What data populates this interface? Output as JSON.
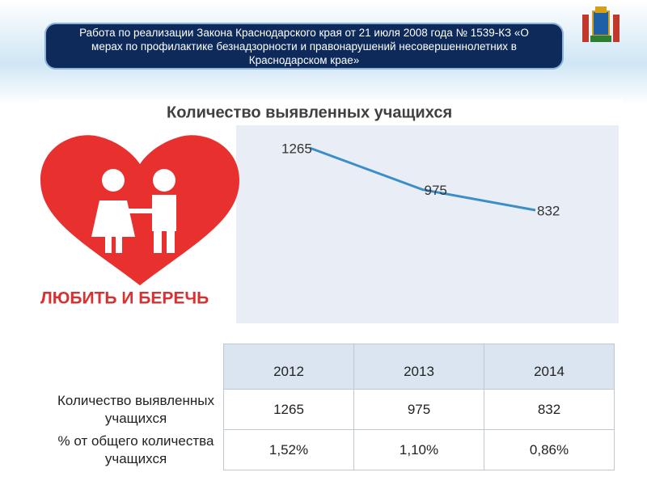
{
  "header": {
    "title": "Работа по реализации Закона Краснодарского края от 21 июля 2008 года № 1539-КЗ «О мерах по профилактике безнадзорности и правонарушений несовершеннолетних в Краснодарском крае»"
  },
  "image_caption": "ЛЮБИТЬ И БЕРЕЧЬ",
  "chart_data": {
    "type": "line",
    "title": "Количество выявленных учащихся",
    "categories": [
      null,
      null,
      null
    ],
    "series": [
      {
        "name": "Количество выявленных учащихся",
        "color": "#3a8ec9",
        "values": [
          1265,
          975,
          832
        ]
      }
    ]
  },
  "table": {
    "columns": [
      "2012",
      "2013",
      "2014"
    ],
    "rows": [
      {
        "label": "Количество выявленных учащихся",
        "cells": [
          1265,
          975,
          832
        ]
      },
      {
        "label": "% от общего количества учащихся",
        "cells": [
          "1,52%",
          "1,10%",
          "0,86%"
        ]
      }
    ]
  }
}
